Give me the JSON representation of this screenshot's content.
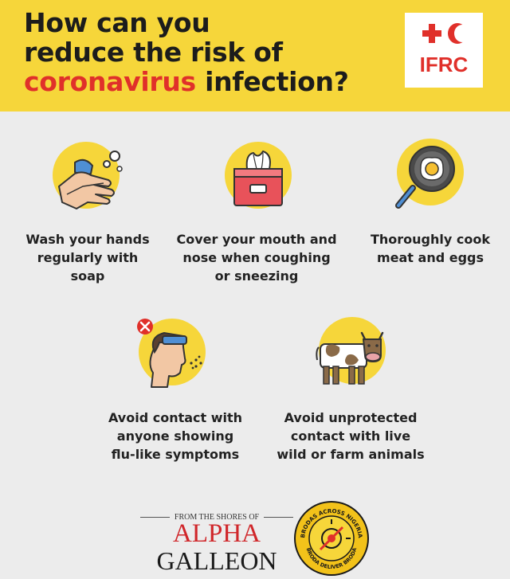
{
  "header": {
    "line1": "How can you",
    "line2": "reduce the risk of",
    "line3_red": "coronavirus",
    "line3_rest": " infection?"
  },
  "logo": {
    "text": "IFRC"
  },
  "tips": [
    {
      "icon": "handwash-icon",
      "lines": [
        "Wash your hands",
        "regularly with",
        "soap"
      ]
    },
    {
      "icon": "tissue-box-icon",
      "lines": [
        "Cover your mouth and",
        "nose when coughing",
        "or sneezing"
      ]
    },
    {
      "icon": "frying-pan-egg-icon",
      "lines": [
        "Thoroughly cook",
        "meat and eggs"
      ]
    },
    {
      "icon": "sick-person-icon",
      "lines": [
        "Avoid contact with",
        "anyone showing",
        "flu-like symptoms"
      ]
    },
    {
      "icon": "cow-icon",
      "lines": [
        "Avoid unprotected",
        "contact with live",
        "wild or farm animals"
      ]
    }
  ],
  "footer": {
    "from": "FROM THE SHORES OF",
    "alpha": "ALPHA",
    "galleon": "GALLEON",
    "seal_top": "BRODAS ACROSS NIGERIA",
    "seal_bottom": "BRODA DELIVER BRODA"
  },
  "colors": {
    "yellow": "#f6d63a",
    "red": "#e0302a",
    "text": "#222222",
    "background": "#ececec"
  }
}
